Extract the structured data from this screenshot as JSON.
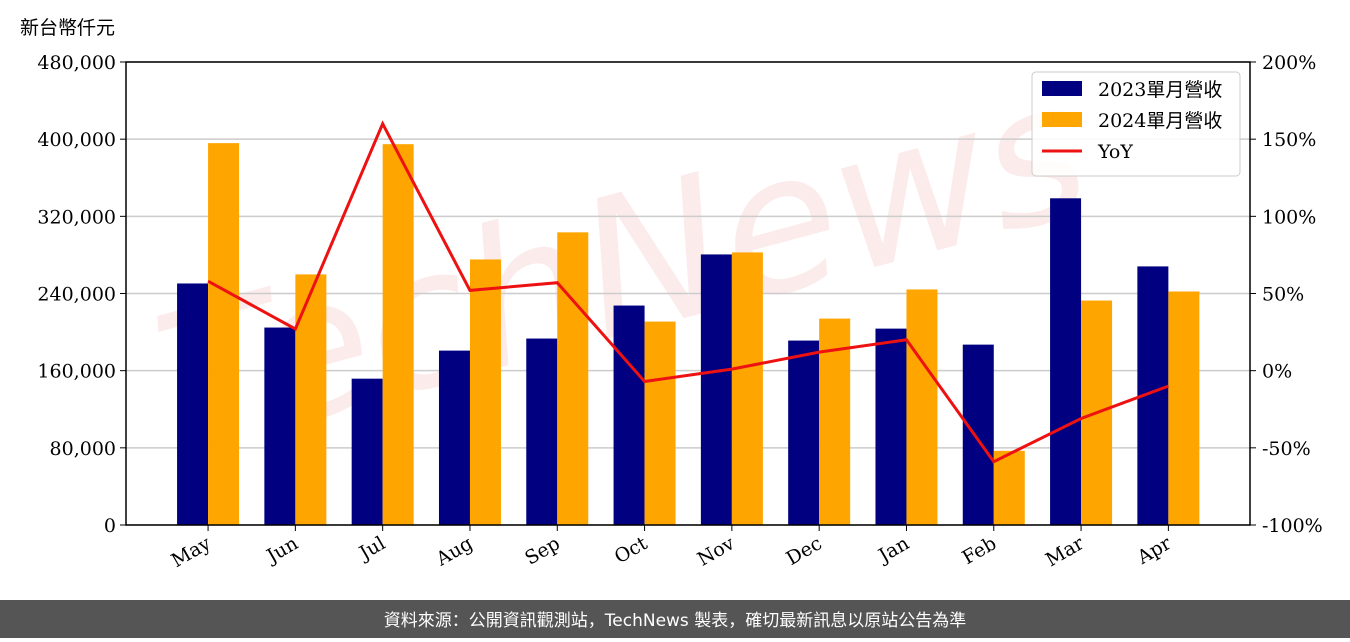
{
  "chart_data": {
    "type": "bar_line",
    "y_label": "新台幣仟元",
    "watermark": "TechNews",
    "footer": "資料來源：公開資訊觀測站，TechNews 製表，確切最新訊息以原站公告為準",
    "categories": [
      "May",
      "Jun",
      "Jul",
      "Aug",
      "Sep",
      "Oct",
      "Nov",
      "Dec",
      "Jan",
      "Feb",
      "Mar",
      "Apr"
    ],
    "series": [
      {
        "name": "2023單月營收",
        "color": "#000080",
        "type": "bar",
        "values": [
          250400,
          204700,
          151700,
          180800,
          193300,
          227500,
          280500,
          191200,
          203600,
          187000,
          338700,
          268100
        ]
      },
      {
        "name": "2024單月營收",
        "color": "#ffa500",
        "type": "bar",
        "values": [
          395900,
          259800,
          394800,
          275300,
          303400,
          210900,
          282600,
          214000,
          244200,
          76900,
          232700,
          242100
        ]
      },
      {
        "name": "YoY",
        "color": "#ee1111",
        "type": "line",
        "axis": "y2",
        "values": [
          58,
          27,
          160,
          52,
          57,
          -7,
          1,
          12,
          20,
          -59,
          -31,
          -10
        ]
      }
    ],
    "ylim": [
      0,
      480000
    ],
    "yticks": [
      0,
      {
        "value": 80000,
        "label": "80,000"
      },
      {
        "value": 160000,
        "label": "160,000"
      },
      {
        "value": 240000,
        "label": "240,000"
      },
      {
        "value": 320000,
        "label": "320,000"
      },
      {
        "value": 400000,
        "label": "400,000"
      },
      {
        "value": 480000,
        "label": "480,000"
      }
    ],
    "y2lim": [
      -100,
      200
    ],
    "y2ticks": [
      {
        "value": -100,
        "label": "-100%"
      },
      {
        "value": -50,
        "label": "-50%"
      },
      {
        "value": 0,
        "label": "0%"
      },
      {
        "value": 50,
        "label": "50%"
      },
      {
        "value": 100,
        "label": "100%"
      },
      {
        "value": 150,
        "label": "150%"
      },
      {
        "value": 200,
        "label": "200%"
      }
    ],
    "grid": true,
    "legend": "upper right"
  }
}
